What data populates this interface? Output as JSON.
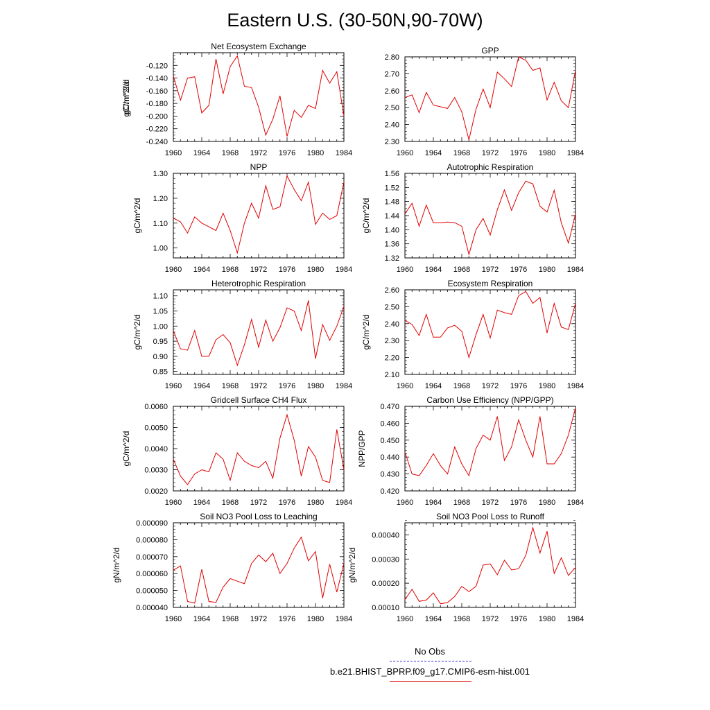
{
  "page_title": "Eastern U.S. (30-50N,90-70W)",
  "legend": {
    "obs_label": "No Obs",
    "model_label": "b.e21.BHIST_BPRP.f09_g17.CMIP6-esm-hist.001",
    "obs_color": "#2a2ad0",
    "model_color": "#e00000"
  },
  "chart_data": [
    {
      "type": "line",
      "title": "Net Ecosystem Exchange",
      "ylabel": "gC/m^2/d",
      "x": [
        1960,
        1961,
        1962,
        1963,
        1964,
        1965,
        1966,
        1967,
        1968,
        1969,
        1970,
        1971,
        1972,
        1973,
        1974,
        1975,
        1976,
        1977,
        1978,
        1979,
        1980,
        1981,
        1982,
        1983,
        1984
      ],
      "values": [
        -0.137,
        -0.175,
        -0.14,
        -0.138,
        -0.195,
        -0.183,
        -0.11,
        -0.165,
        -0.122,
        -0.105,
        -0.153,
        -0.155,
        -0.186,
        -0.23,
        -0.205,
        -0.168,
        -0.232,
        -0.191,
        -0.202,
        -0.183,
        -0.188,
        -0.128,
        -0.148,
        -0.13,
        -0.2
      ],
      "xlim": [
        1960,
        1984
      ],
      "ylim": [
        -0.24,
        -0.1
      ],
      "xticks": [
        1960,
        1964,
        1968,
        1972,
        1976,
        1980,
        1984
      ],
      "yticks": [
        -0.24,
        -0.22,
        -0.2,
        -0.18,
        -0.16,
        -0.14,
        -0.12
      ],
      "ytick_labels": [
        "-0.240",
        "-0.220",
        "-0.200",
        "-0.180",
        "-0.160",
        "-0.140",
        "-0.120"
      ],
      "ymin_step": 0.005,
      "grid": false
    },
    {
      "type": "line",
      "title": "GPP",
      "ylabel": "gC/m^2/d",
      "x": [
        1960,
        1961,
        1962,
        1963,
        1964,
        1965,
        1966,
        1967,
        1968,
        1969,
        1970,
        1971,
        1972,
        1973,
        1974,
        1975,
        1976,
        1977,
        1978,
        1979,
        1980,
        1981,
        1982,
        1983,
        1984
      ],
      "values": [
        2.56,
        2.575,
        2.47,
        2.59,
        2.515,
        2.505,
        2.495,
        2.56,
        2.475,
        2.31,
        2.49,
        2.61,
        2.5,
        2.71,
        2.67,
        2.625,
        2.8,
        2.78,
        2.72,
        2.735,
        2.545,
        2.65,
        2.54,
        2.5,
        2.72
      ],
      "xlim": [
        1960,
        1984
      ],
      "ylim": [
        2.3,
        2.8
      ],
      "xticks": [
        1960,
        1964,
        1968,
        1972,
        1976,
        1980,
        1984
      ],
      "yticks": [
        2.3,
        2.4,
        2.5,
        2.6,
        2.7,
        2.8
      ],
      "ytick_labels": [
        "2.30",
        "2.40",
        "2.50",
        "2.60",
        "2.70",
        "2.80"
      ],
      "ymin_step": 0.02,
      "grid": false
    },
    {
      "type": "line",
      "title": "NPP",
      "ylabel": "gC/m^2/d",
      "x": [
        1960,
        1961,
        1962,
        1963,
        1964,
        1965,
        1966,
        1967,
        1968,
        1969,
        1970,
        1971,
        1972,
        1973,
        1974,
        1975,
        1976,
        1977,
        1978,
        1979,
        1980,
        1981,
        1982,
        1983,
        1984
      ],
      "values": [
        1.12,
        1.105,
        1.06,
        1.125,
        1.1,
        1.085,
        1.07,
        1.14,
        1.07,
        0.98,
        1.1,
        1.18,
        1.12,
        1.25,
        1.155,
        1.165,
        1.29,
        1.235,
        1.19,
        1.265,
        1.095,
        1.14,
        1.115,
        1.13,
        1.265
      ],
      "xlim": [
        1960,
        1984
      ],
      "ylim": [
        0.96,
        1.3
      ],
      "xticks": [
        1960,
        1964,
        1968,
        1972,
        1976,
        1980,
        1984
      ],
      "yticks": [
        1.0,
        1.1,
        1.2,
        1.3
      ],
      "ytick_labels": [
        "1.00",
        "1.10",
        "1.20",
        "1.30"
      ],
      "ymin_step": 0.02,
      "grid": false
    },
    {
      "type": "line",
      "title": "Autotrophic Respiration",
      "ylabel": "gC/m^2/d",
      "x": [
        1960,
        1961,
        1962,
        1963,
        1964,
        1965,
        1966,
        1967,
        1968,
        1969,
        1970,
        1971,
        1972,
        1973,
        1974,
        1975,
        1976,
        1977,
        1978,
        1979,
        1980,
        1981,
        1982,
        1983,
        1984
      ],
      "values": [
        1.445,
        1.475,
        1.41,
        1.47,
        1.42,
        1.42,
        1.422,
        1.42,
        1.41,
        1.33,
        1.4,
        1.432,
        1.385,
        1.457,
        1.513,
        1.455,
        1.505,
        1.538,
        1.53,
        1.467,
        1.45,
        1.512,
        1.42,
        1.362,
        1.445
      ],
      "xlim": [
        1960,
        1984
      ],
      "ylim": [
        1.32,
        1.56
      ],
      "xticks": [
        1960,
        1964,
        1968,
        1972,
        1976,
        1980,
        1984
      ],
      "yticks": [
        1.32,
        1.36,
        1.4,
        1.44,
        1.48,
        1.52,
        1.56
      ],
      "ytick_labels": [
        "1.32",
        "1.36",
        "1.40",
        "1.44",
        "1.48",
        "1.52",
        "1.56"
      ],
      "ymin_step": 0.01,
      "grid": false
    },
    {
      "type": "line",
      "title": "Heterotrophic Respiration",
      "ylabel": "gC/m^2/d",
      "x": [
        1960,
        1961,
        1962,
        1963,
        1964,
        1965,
        1966,
        1967,
        1968,
        1969,
        1970,
        1971,
        1972,
        1973,
        1974,
        1975,
        1976,
        1977,
        1978,
        1979,
        1980,
        1981,
        1982,
        1983,
        1984
      ],
      "values": [
        0.985,
        0.925,
        0.92,
        0.985,
        0.9,
        0.9,
        0.955,
        0.972,
        0.945,
        0.87,
        0.938,
        1.022,
        0.93,
        1.02,
        0.95,
        0.995,
        1.06,
        1.05,
        0.985,
        1.085,
        0.892,
        1.005,
        0.953,
        1.0,
        1.065
      ],
      "xlim": [
        1960,
        1984
      ],
      "ylim": [
        0.84,
        1.12
      ],
      "xticks": [
        1960,
        1964,
        1968,
        1972,
        1976,
        1980,
        1984
      ],
      "yticks": [
        0.85,
        0.9,
        0.95,
        1.0,
        1.05,
        1.1
      ],
      "ytick_labels": [
        "0.85",
        "0.90",
        "0.95",
        "1.00",
        "1.05",
        "1.10"
      ],
      "ymin_step": 0.01,
      "grid": false
    },
    {
      "type": "line",
      "title": "Ecosystem Respiration",
      "ylabel": "gC/m^2/d",
      "x": [
        1960,
        1961,
        1962,
        1963,
        1964,
        1965,
        1966,
        1967,
        1968,
        1969,
        1970,
        1971,
        1972,
        1973,
        1974,
        1975,
        1976,
        1977,
        1978,
        1979,
        1980,
        1981,
        1982,
        1983,
        1984
      ],
      "values": [
        2.42,
        2.395,
        2.33,
        2.455,
        2.32,
        2.32,
        2.375,
        2.39,
        2.355,
        2.2,
        2.335,
        2.455,
        2.315,
        2.48,
        2.465,
        2.455,
        2.565,
        2.59,
        2.52,
        2.555,
        2.345,
        2.52,
        2.38,
        2.365,
        2.52
      ],
      "xlim": [
        1960,
        1984
      ],
      "ylim": [
        2.1,
        2.6
      ],
      "xticks": [
        1960,
        1964,
        1968,
        1972,
        1976,
        1980,
        1984
      ],
      "yticks": [
        2.1,
        2.2,
        2.3,
        2.4,
        2.5,
        2.6
      ],
      "ytick_labels": [
        "2.10",
        "2.20",
        "2.30",
        "2.40",
        "2.50",
        "2.60"
      ],
      "ymin_step": 0.02,
      "grid": false
    },
    {
      "type": "line",
      "title": "Gridcell Surface CH4 Flux",
      "ylabel": "gC/m^2/d",
      "x": [
        1960,
        1961,
        1962,
        1963,
        1964,
        1965,
        1966,
        1967,
        1968,
        1969,
        1970,
        1971,
        1972,
        1973,
        1974,
        1975,
        1976,
        1977,
        1978,
        1979,
        1980,
        1981,
        1982,
        1983,
        1984
      ],
      "values": [
        0.0035,
        0.0027,
        0.0023,
        0.0028,
        0.003,
        0.0029,
        0.0038,
        0.0035,
        0.0025,
        0.0038,
        0.0034,
        0.0032,
        0.0031,
        0.0034,
        0.0026,
        0.0045,
        0.0056,
        0.0044,
        0.0027,
        0.0041,
        0.0036,
        0.0025,
        0.0024,
        0.0049,
        0.003
      ],
      "xlim": [
        1960,
        1984
      ],
      "ylim": [
        0.002,
        0.006
      ],
      "xticks": [
        1960,
        1964,
        1968,
        1972,
        1976,
        1980,
        1984
      ],
      "yticks": [
        0.002,
        0.003,
        0.004,
        0.005,
        0.006
      ],
      "ytick_labels": [
        "0.0020",
        "0.0030",
        "0.0040",
        "0.0050",
        "0.0060"
      ],
      "ymin_step": 0.0002,
      "grid": false
    },
    {
      "type": "line",
      "title": "Carbon Use Efficiency (NPP/GPP)",
      "ylabel": "NPP/GPP",
      "x": [
        1960,
        1961,
        1962,
        1963,
        1964,
        1965,
        1966,
        1967,
        1968,
        1969,
        1970,
        1971,
        1972,
        1973,
        1974,
        1975,
        1976,
        1977,
        1978,
        1979,
        1980,
        1981,
        1982,
        1983,
        1984
      ],
      "values": [
        0.443,
        0.43,
        0.429,
        0.435,
        0.442,
        0.435,
        0.43,
        0.446,
        0.436,
        0.429,
        0.445,
        0.453,
        0.45,
        0.464,
        0.438,
        0.446,
        0.462,
        0.45,
        0.44,
        0.464,
        0.436,
        0.436,
        0.442,
        0.453,
        0.469
      ],
      "xlim": [
        1960,
        1984
      ],
      "ylim": [
        0.42,
        0.47
      ],
      "xticks": [
        1960,
        1964,
        1968,
        1972,
        1976,
        1980,
        1984
      ],
      "yticks": [
        0.42,
        0.43,
        0.44,
        0.45,
        0.46,
        0.47
      ],
      "ytick_labels": [
        "0.420",
        "0.430",
        "0.440",
        "0.450",
        "0.460",
        "0.470"
      ],
      "ymin_step": 0.002,
      "grid": false
    },
    {
      "type": "line",
      "title": "Soil NO3 Pool Loss to Leaching",
      "ylabel": "gN/m^2/d",
      "x": [
        1960,
        1961,
        1962,
        1963,
        1964,
        1965,
        1966,
        1967,
        1968,
        1969,
        1970,
        1971,
        1972,
        1973,
        1974,
        1975,
        1976,
        1977,
        1978,
        1979,
        1980,
        1981,
        1982,
        1983,
        1984
      ],
      "values": [
        6.2e-05,
        6.45e-05,
        4.35e-05,
        4.25e-05,
        6.25e-05,
        4.35e-05,
        4.3e-05,
        5.2e-05,
        5.7e-05,
        5.55e-05,
        5.4e-05,
        6.6e-05,
        7.1e-05,
        6.7e-05,
        7.2e-05,
        6e-05,
        6.6e-05,
        7.5e-05,
        8.15e-05,
        6.75e-05,
        7.3e-05,
        4.55e-05,
        6.55e-05,
        4.9e-05,
        6.6e-05
      ],
      "xlim": [
        1960,
        1984
      ],
      "ylim": [
        4e-05,
        9e-05
      ],
      "xticks": [
        1960,
        1964,
        1968,
        1972,
        1976,
        1980,
        1984
      ],
      "yticks": [
        4e-05,
        5e-05,
        6e-05,
        7e-05,
        8e-05,
        9e-05
      ],
      "ytick_labels": [
        "0.000040",
        "0.000050",
        "0.000060",
        "0.000070",
        "0.000080",
        "0.000090"
      ],
      "ymin_step": 2e-06,
      "grid": false
    },
    {
      "type": "line",
      "title": "Soil NO3 Pool Loss to Runoff",
      "ylabel": "gN/m^2/d",
      "x": [
        1960,
        1961,
        1962,
        1963,
        1964,
        1965,
        1966,
        1967,
        1968,
        1969,
        1970,
        1971,
        1972,
        1973,
        1974,
        1975,
        1976,
        1977,
        1978,
        1979,
        1980,
        1981,
        1982,
        1983,
        1984
      ],
      "values": [
        0.000132,
        0.000175,
        0.000125,
        0.00013,
        0.00016,
        0.000115,
        0.00012,
        0.000145,
        0.000187,
        0.000165,
        0.000187,
        0.000275,
        0.00028,
        0.000235,
        0.000295,
        0.000255,
        0.00026,
        0.000315,
        0.00043,
        0.000325,
        0.000415,
        0.00024,
        0.000305,
        0.000232,
        0.000265
      ],
      "xlim": [
        1960,
        1984
      ],
      "ylim": [
        0.0001,
        0.00045
      ],
      "xticks": [
        1960,
        1964,
        1968,
        1972,
        1976,
        1980,
        1984
      ],
      "yticks": [
        0.0001,
        0.0002,
        0.0003,
        0.0004
      ],
      "ytick_labels": [
        "0.00010",
        "0.00020",
        "0.00030",
        "0.00040"
      ],
      "ymin_step": 2e-05,
      "grid": false
    }
  ]
}
